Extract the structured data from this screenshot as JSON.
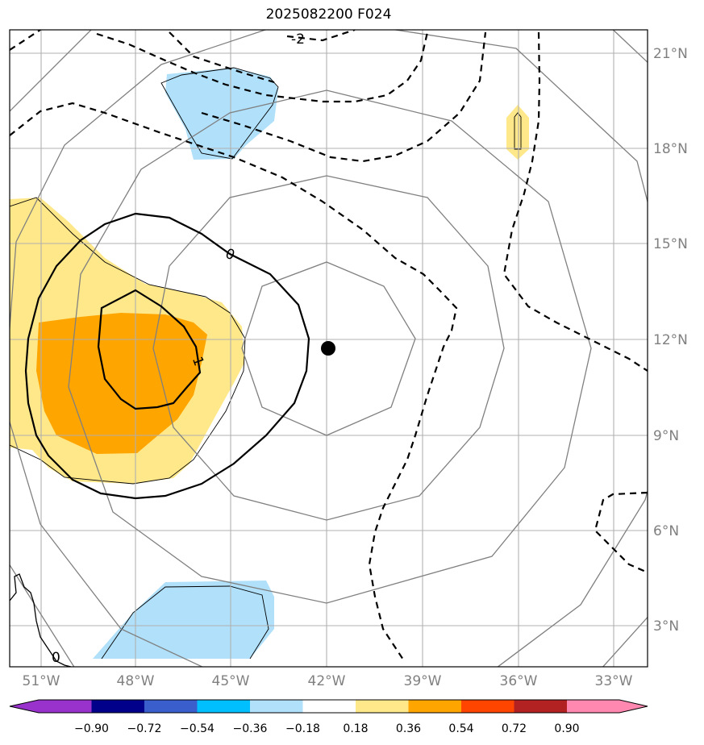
{
  "title": "2025082200 F024",
  "lat_labels": [
    "21°N",
    "18°N",
    "15°N",
    "12°N",
    "9°N",
    "6°N",
    "3°N"
  ],
  "lon_labels": [
    "51°W",
    "48°W",
    "45°W",
    "42°W",
    "39°W",
    "36°W",
    "33°W"
  ],
  "contour_labels": [
    "-2",
    "0",
    "1",
    "0"
  ],
  "colorbar": {
    "ticks": [
      "−0.90",
      "−0.72",
      "−0.54",
      "−0.36",
      "−0.18",
      "0.18",
      "0.36",
      "0.54",
      "0.72",
      "0.90"
    ],
    "colors": [
      "#9932cc",
      "#00008b",
      "#3a5fcd",
      "#00bfff",
      "#b0e0fa",
      "#ffffff",
      "#ffe88a",
      "#ffa500",
      "#ff4500",
      "#b22222",
      "#ff88b0"
    ]
  },
  "colors": {
    "light_blue": "#b0e0fa",
    "light_yellow": "#ffe88a",
    "orange": "#ffa500",
    "grid": "#b0b0b0",
    "circle": "#808080"
  },
  "center_marker": "storm-center"
}
